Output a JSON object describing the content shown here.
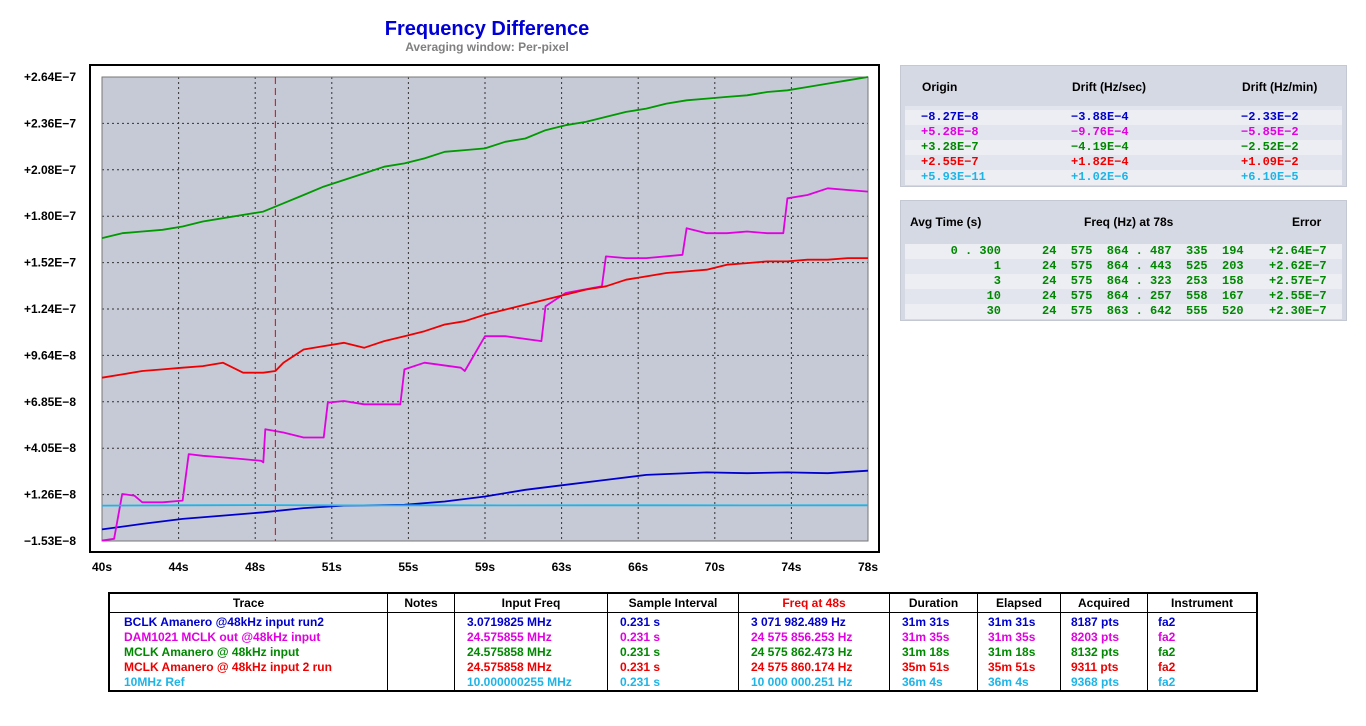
{
  "title": "Frequency Difference",
  "subtitle": "Averaging window: Per-pixel",
  "chart_data": {
    "type": "line",
    "title": "Frequency Difference",
    "subtitle": "Averaging window: Per-pixel",
    "y_tick_labels": [
      "+2.64E−7",
      "+2.36E−7",
      "+2.08E−7",
      "+1.80E−7",
      "+1.52E−7",
      "+1.24E−7",
      "+9.64E−8",
      "+6.85E−8",
      "+4.05E−8",
      "+1.26E−8",
      "−1.53E−8"
    ],
    "x_tick_labels": [
      "40s",
      "44s",
      "48s",
      "51s",
      "55s",
      "59s",
      "63s",
      "66s",
      "70s",
      "74s",
      "78s"
    ],
    "xlim": [
      40,
      78
    ],
    "ylim": [
      -1.53e-08,
      2.64e-07
    ],
    "grid": true,
    "marker_x": 48.6,
    "series": [
      {
        "name": "BCLK Amanero @48kHz input run2",
        "color": "#0000cc",
        "x": [
          40,
          42,
          44,
          46,
          48,
          50,
          52,
          55,
          57,
          59,
          61,
          63,
          65,
          67,
          70,
          72,
          74,
          76,
          78
        ],
        "y": [
          -8.3e-09,
          -5e-09,
          -2e-09,
          0,
          2e-09,
          4.5e-09,
          6e-09,
          6.5e-09,
          8.5e-09,
          1.15e-08,
          1.55e-08,
          1.85e-08,
          2.15e-08,
          2.45e-08,
          2.6e-08,
          2.55e-08,
          2.6e-08,
          2.55e-08,
          2.7e-08
        ]
      },
      {
        "name": "DAM1021 MCLK out @48kHz input",
        "color": "#e000e0",
        "x": [
          40,
          40.6,
          41,
          41.6,
          42,
          43,
          44,
          44.3,
          45,
          46,
          47,
          47.9,
          48,
          48.1,
          49,
          50,
          51,
          51.2,
          52,
          53,
          54.8,
          55,
          56,
          57.8,
          58,
          59,
          60,
          61.8,
          62,
          63,
          64.8,
          65,
          66,
          67,
          68.8,
          69,
          70,
          71,
          72,
          73,
          73.8,
          74,
          75,
          76,
          77,
          78
        ],
        "y": [
          -1.5e-08,
          -1.4e-08,
          1.3e-08,
          1.2e-08,
          8e-09,
          8e-09,
          9e-09,
          3.7e-08,
          3.6e-08,
          3.5e-08,
          3.4e-08,
          3.3e-08,
          3.2e-08,
          5.2e-08,
          5e-08,
          4.7e-08,
          4.7e-08,
          6.8e-08,
          6.9e-08,
          6.7e-08,
          6.7e-08,
          8.8e-08,
          9.2e-08,
          8.9e-08,
          8.7e-08,
          1.08e-07,
          1.08e-07,
          1.05e-07,
          1.26e-07,
          1.34e-07,
          1.38e-07,
          1.56e-07,
          1.55e-07,
          1.55e-07,
          1.57e-07,
          1.73e-07,
          1.7e-07,
          1.7e-07,
          1.71e-07,
          1.7e-07,
          1.7e-07,
          1.91e-07,
          1.93e-07,
          1.97e-07,
          1.96e-07,
          1.95e-07
        ]
      },
      {
        "name": "MCLK Amanero @ 48kHz input",
        "color": "#009900",
        "x": [
          40,
          41,
          42,
          43,
          44,
          45,
          46,
          47,
          48,
          49,
          50,
          51,
          52,
          53,
          54,
          55,
          56,
          57,
          58,
          59,
          60,
          61,
          62,
          63,
          64,
          65,
          66,
          67,
          68,
          69,
          70,
          71,
          72,
          73,
          74,
          75,
          76,
          77,
          78
        ],
        "y": [
          1.67e-07,
          1.7e-07,
          1.71e-07,
          1.72e-07,
          1.74e-07,
          1.77e-07,
          1.79e-07,
          1.81e-07,
          1.83e-07,
          1.88e-07,
          1.93e-07,
          1.98e-07,
          2.02e-07,
          2.06e-07,
          2.1e-07,
          2.12e-07,
          2.15e-07,
          2.19e-07,
          2.2e-07,
          2.21e-07,
          2.25e-07,
          2.27e-07,
          2.32e-07,
          2.35e-07,
          2.37e-07,
          2.4e-07,
          2.43e-07,
          2.45e-07,
          2.48e-07,
          2.5e-07,
          2.51e-07,
          2.52e-07,
          2.53e-07,
          2.55e-07,
          2.56e-07,
          2.58e-07,
          2.6e-07,
          2.62e-07,
          2.64e-07
        ]
      },
      {
        "name": "MCLK Amanero @ 48kHz input 2 run",
        "color": "#ee0000",
        "x": [
          40,
          41,
          42,
          43,
          44,
          45,
          46,
          47,
          48,
          48.6,
          49,
          50,
          51,
          52,
          53,
          54,
          55,
          56,
          57,
          58,
          59,
          60,
          61,
          62,
          63,
          64,
          65,
          66,
          67,
          68,
          69,
          70,
          71,
          72,
          73,
          74,
          75,
          76,
          77,
          78
        ],
        "y": [
          8.3e-08,
          8.5e-08,
          8.7e-08,
          8.8e-08,
          8.9e-08,
          9e-08,
          9.2e-08,
          8.6e-08,
          8.6e-08,
          8.7e-08,
          9.2e-08,
          1e-07,
          1.02e-07,
          1.04e-07,
          1.01e-07,
          1.05e-07,
          1.08e-07,
          1.11e-07,
          1.15e-07,
          1.17e-07,
          1.21e-07,
          1.24e-07,
          1.27e-07,
          1.3e-07,
          1.33e-07,
          1.36e-07,
          1.38e-07,
          1.42e-07,
          1.44e-07,
          1.46e-07,
          1.47e-07,
          1.48e-07,
          1.51e-07,
          1.52e-07,
          1.53e-07,
          1.53e-07,
          1.54e-07,
          1.54e-07,
          1.55e-07,
          1.55e-07
        ]
      },
      {
        "name": "10MHz Ref",
        "color": "#1eb4e6",
        "x": [
          40,
          44,
          48,
          52,
          56,
          60,
          64,
          68,
          72,
          76,
          78
        ],
        "y": [
          6e-09,
          6.2e-09,
          6.3e-09,
          6.1e-09,
          6.2e-09,
          6.1e-09,
          6.2e-09,
          6.2e-09,
          6.1e-09,
          6.2e-09,
          6.2e-09
        ]
      }
    ]
  },
  "drift_panel": {
    "headers": [
      "Origin",
      "Drift (Hz/sec)",
      "Drift (Hz/min)"
    ],
    "rows": [
      {
        "origin": "−8.27E−8",
        "hz_sec": "−3.88E−4",
        "hz_min": "−2.33E−2",
        "color": "#0000cc"
      },
      {
        "origin": "+5.28E−8",
        "hz_sec": "−9.76E−4",
        "hz_min": "−5.85E−2",
        "color": "#e000e0"
      },
      {
        "origin": "+3.28E−7",
        "hz_sec": "−4.19E−4",
        "hz_min": "−2.52E−2",
        "color": "#008800"
      },
      {
        "origin": "+2.55E−7",
        "hz_sec": "+1.82E−4",
        "hz_min": "+1.09E−2",
        "color": "#ee0000"
      },
      {
        "origin": "+5.93E−11",
        "hz_sec": "+1.02E−6",
        "hz_min": "+6.10E−5",
        "color": "#1eb4e6"
      }
    ]
  },
  "avg_panel": {
    "headers": [
      "Avg Time (s)",
      "Freq (Hz) at 78s",
      "Error"
    ],
    "color": "#008800",
    "rows": [
      {
        "avg": "0 . 300",
        "freq": "24  575  864 . 487  335  194",
        "err": "+2.64E−7"
      },
      {
        "avg": "1",
        "freq": "24  575  864 . 443  525  203",
        "err": "+2.62E−7"
      },
      {
        "avg": "3",
        "freq": "24  575  864 . 323  253  158",
        "err": "+2.57E−7"
      },
      {
        "avg": "10",
        "freq": "24  575  864 . 257  558  167",
        "err": "+2.55E−7"
      },
      {
        "avg": "30",
        "freq": "24  575  863 . 642  555  520",
        "err": "+2.30E−7"
      }
    ]
  },
  "trace_table": {
    "headers": [
      "Trace",
      "Notes",
      "Input Freq",
      "Sample Interval",
      "Freq at 48s",
      "Duration",
      "Elapsed",
      "Acquired",
      "Instrument"
    ],
    "freq_header_color": "#ee0000",
    "rows": [
      {
        "trace": "BCLK Amanero @48kHz input run2",
        "notes": "",
        "input": "3.0719825 MHz",
        "interval": "0.231 s",
        "freq": "3 071 982.489 Hz",
        "duration": "31m 31s",
        "elapsed": "31m 31s",
        "acquired": "8187 pts",
        "instrument": "fa2",
        "color": "#0000cc"
      },
      {
        "trace": "DAM1021 MCLK out @48kHz input",
        "notes": "",
        "input": "24.575855 MHz",
        "interval": "0.231 s",
        "freq": "24 575 856.253 Hz",
        "duration": "31m 35s",
        "elapsed": "31m 35s",
        "acquired": "8203 pts",
        "instrument": "fa2",
        "color": "#e000e0"
      },
      {
        "trace": "MCLK Amanero @ 48kHz input",
        "notes": "",
        "input": "24.575858 MHz",
        "interval": "0.231 s",
        "freq": "24 575 862.473 Hz",
        "duration": "31m 18s",
        "elapsed": "31m 18s",
        "acquired": "8132 pts",
        "instrument": "fa2",
        "color": "#008800"
      },
      {
        "trace": "MCLK Amanero @ 48kHz input 2 run",
        "notes": "",
        "input": "24.575858 MHz",
        "interval": "0.231 s",
        "freq": "24 575 860.174 Hz",
        "duration": "35m 51s",
        "elapsed": "35m 51s",
        "acquired": "9311 pts",
        "instrument": "fa2",
        "color": "#ee0000"
      },
      {
        "trace": "10MHz Ref",
        "notes": "",
        "input": "10.000000255 MHz",
        "interval": "0.231 s",
        "freq": "10 000 000.251 Hz",
        "duration": "36m 4s",
        "elapsed": "36m 4s",
        "acquired": "9368 pts",
        "instrument": "fa2",
        "color": "#1eb4e6"
      }
    ]
  }
}
